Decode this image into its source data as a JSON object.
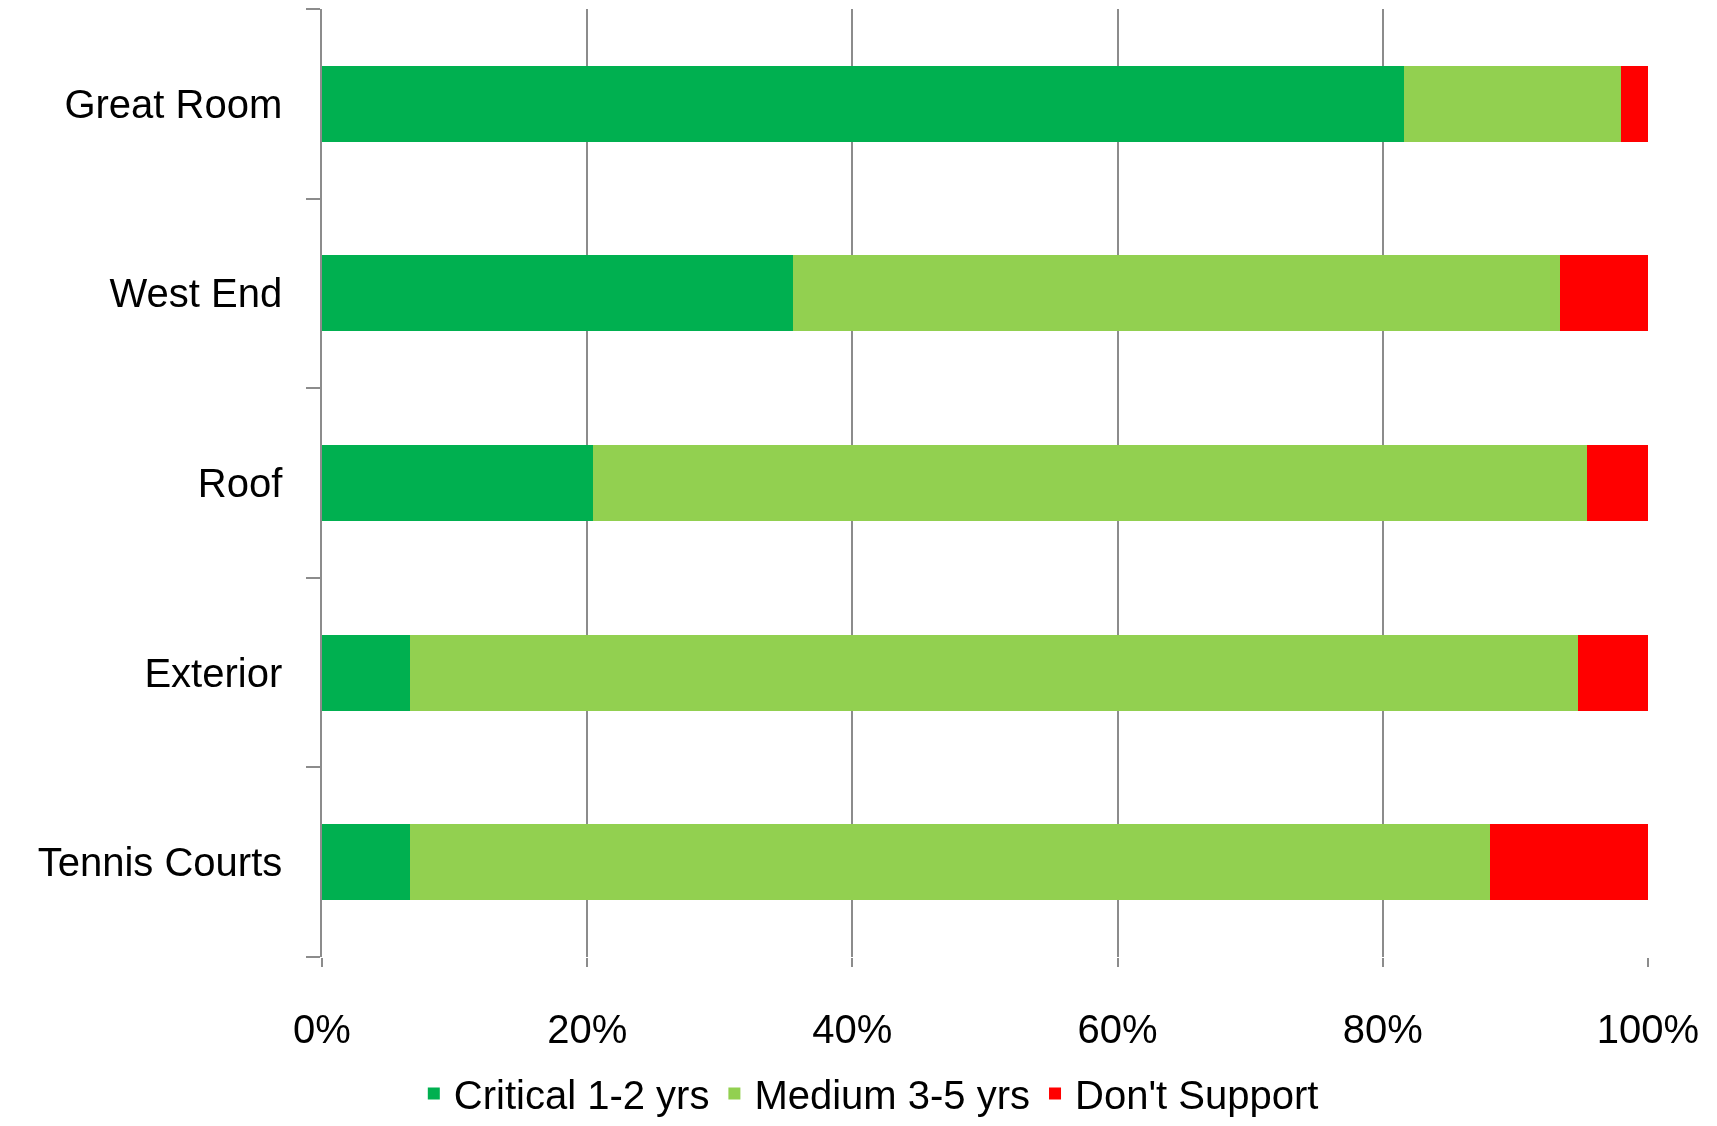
{
  "chart_data": {
    "type": "bar",
    "orientation": "horizontal",
    "stacked": true,
    "categories": [
      "Great Room",
      "West End",
      "Roof",
      "Exterior",
      "Tennis Courts"
    ],
    "series": [
      {
        "name": "Critical 1-2 yrs",
        "color": "#00b050",
        "values": [
          81.6,
          35.5,
          20.4,
          6.6,
          6.6
        ]
      },
      {
        "name": "Medium 3-5 yrs",
        "color": "#92d050",
        "values": [
          16.4,
          57.9,
          75.0,
          88.1,
          81.5
        ]
      },
      {
        "name": "Don't Support",
        "color": "#ff0000",
        "values": [
          2.0,
          6.6,
          4.6,
          5.3,
          11.9
        ]
      }
    ],
    "xlim": [
      0,
      100
    ],
    "xticks": [
      {
        "value": 0,
        "label": "0%"
      },
      {
        "value": 20,
        "label": "20%"
      },
      {
        "value": 40,
        "label": "40%"
      },
      {
        "value": 60,
        "label": "60%"
      },
      {
        "value": 80,
        "label": "80%"
      },
      {
        "value": 100,
        "label": "100%"
      }
    ],
    "grid": "x",
    "legend": "bottom"
  }
}
